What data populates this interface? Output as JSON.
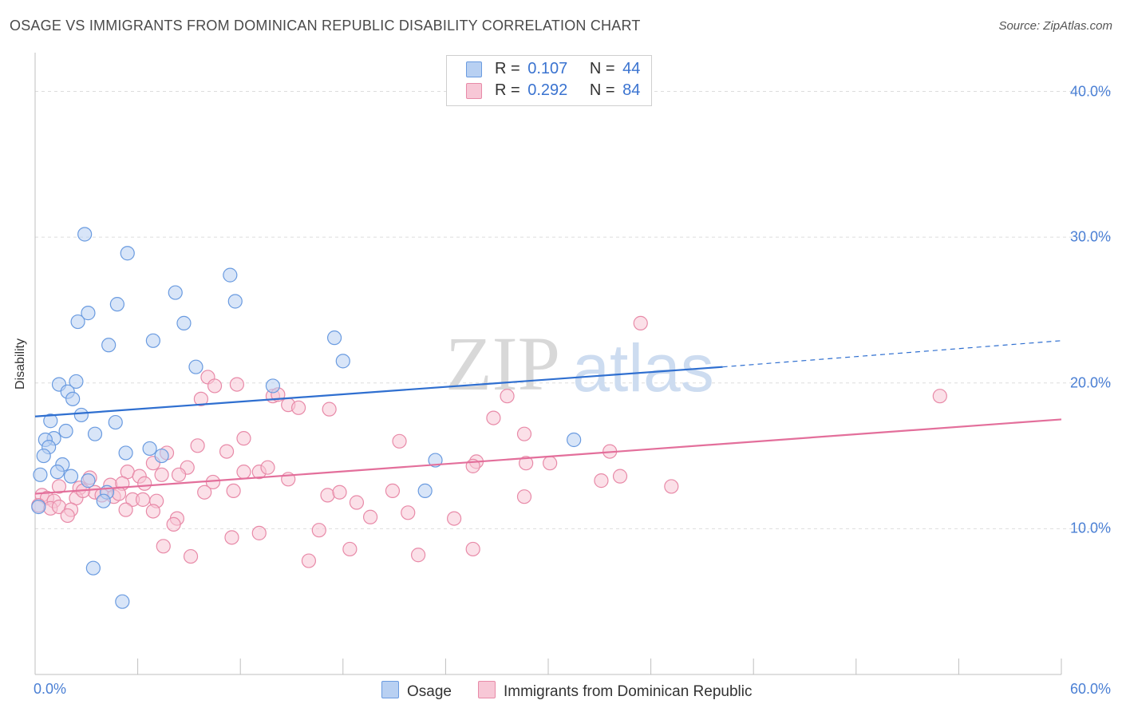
{
  "title": "OSAGE VS IMMIGRANTS FROM DOMINICAN REPUBLIC DISABILITY CORRELATION CHART",
  "source": "Source: ZipAtlas.com",
  "watermark": {
    "part1": "ZIP",
    "part2": "atlas"
  },
  "legend": {
    "rows": [
      {
        "r_label": "R =",
        "r_value": "0.107",
        "n_label": "N =",
        "n_value": "44"
      },
      {
        "r_label": "R =",
        "r_value": "0.292",
        "n_label": "N =",
        "n_value": "84"
      }
    ]
  },
  "bottom_legend": {
    "series1": "Osage",
    "series2": "Immigrants from Dominican Republic"
  },
  "colors": {
    "osage_fill": "#b8d0f2",
    "osage_stroke": "#6a9be0",
    "osage_line": "#2f6fd0",
    "dr_fill": "#f7c7d6",
    "dr_stroke": "#e88aa8",
    "dr_line": "#e36f9b",
    "tick_text": "#4a7fd4",
    "grid": "#dddddd"
  },
  "chart_data": {
    "type": "scatter",
    "title": "OSAGE VS IMMIGRANTS FROM DOMINICAN REPUBLIC DISABILITY CORRELATION CHART",
    "xlabel": "",
    "ylabel": "Disability",
    "xlim": [
      0,
      60
    ],
    "ylim": [
      0,
      42
    ],
    "x_tick_labels": [
      "0.0%",
      "60.0%"
    ],
    "y_ticks": [
      10,
      20,
      30,
      40
    ],
    "y_tick_labels": [
      "10.0%",
      "20.0%",
      "30.0%",
      "40.0%"
    ],
    "series": [
      {
        "name": "Osage",
        "R": 0.107,
        "N": 44,
        "trend": {
          "x0": 0,
          "y0": 17.7,
          "x1": 40.2,
          "y1": 21.1,
          "dashed_to_x": 60,
          "dashed_to_y": 22.9
        },
        "points": [
          [
            2.9,
            30.2
          ],
          [
            5.4,
            28.9
          ],
          [
            11.4,
            27.4
          ],
          [
            8.2,
            26.2
          ],
          [
            11.7,
            25.6
          ],
          [
            4.8,
            25.4
          ],
          [
            3.1,
            24.8
          ],
          [
            2.5,
            24.2
          ],
          [
            8.7,
            24.1
          ],
          [
            6.9,
            22.9
          ],
          [
            17.5,
            23.1
          ],
          [
            4.3,
            22.6
          ],
          [
            9.4,
            21.1
          ],
          [
            18.0,
            21.5
          ],
          [
            2.4,
            20.1
          ],
          [
            1.4,
            19.9
          ],
          [
            13.9,
            19.8
          ],
          [
            1.9,
            19.4
          ],
          [
            2.2,
            18.9
          ],
          [
            2.7,
            17.8
          ],
          [
            0.9,
            17.4
          ],
          [
            4.7,
            17.3
          ],
          [
            1.8,
            16.7
          ],
          [
            3.5,
            16.5
          ],
          [
            1.1,
            16.2
          ],
          [
            0.6,
            16.1
          ],
          [
            0.8,
            15.6
          ],
          [
            5.3,
            15.2
          ],
          [
            6.7,
            15.5
          ],
          [
            7.4,
            15.0
          ],
          [
            0.5,
            15.0
          ],
          [
            23.4,
            14.7
          ],
          [
            31.5,
            16.1
          ],
          [
            1.6,
            14.4
          ],
          [
            1.3,
            13.9
          ],
          [
            0.3,
            13.7
          ],
          [
            2.1,
            13.6
          ],
          [
            3.1,
            13.3
          ],
          [
            4.2,
            12.5
          ],
          [
            22.8,
            12.6
          ],
          [
            4.0,
            11.9
          ],
          [
            0.2,
            11.5
          ],
          [
            3.4,
            7.3
          ],
          [
            5.1,
            5.0
          ]
        ]
      },
      {
        "name": "Immigrants from Dominican Republic",
        "R": 0.292,
        "N": 84,
        "trend": {
          "x0": 0,
          "y0": 12.4,
          "x1": 60,
          "y1": 17.5
        },
        "points": [
          [
            35.4,
            24.1
          ],
          [
            52.9,
            19.1
          ],
          [
            10.1,
            20.4
          ],
          [
            10.5,
            19.8
          ],
          [
            11.8,
            19.9
          ],
          [
            9.7,
            18.9
          ],
          [
            13.9,
            19.1
          ],
          [
            14.8,
            18.5
          ],
          [
            15.4,
            18.3
          ],
          [
            17.2,
            18.2
          ],
          [
            14.2,
            19.2
          ],
          [
            26.8,
            17.6
          ],
          [
            27.6,
            19.1
          ],
          [
            28.6,
            16.5
          ],
          [
            12.2,
            16.2
          ],
          [
            9.5,
            15.7
          ],
          [
            11.2,
            15.3
          ],
          [
            7.7,
            15.2
          ],
          [
            21.3,
            16.0
          ],
          [
            25.8,
            14.6
          ],
          [
            25.6,
            14.3
          ],
          [
            28.7,
            14.5
          ],
          [
            30.1,
            14.5
          ],
          [
            33.6,
            15.3
          ],
          [
            5.4,
            13.9
          ],
          [
            6.1,
            13.6
          ],
          [
            6.9,
            14.5
          ],
          [
            8.9,
            14.2
          ],
          [
            12.2,
            13.9
          ],
          [
            13.1,
            13.9
          ],
          [
            13.6,
            14.2
          ],
          [
            14.8,
            13.4
          ],
          [
            33.1,
            13.3
          ],
          [
            34.2,
            13.6
          ],
          [
            7.4,
            13.7
          ],
          [
            8.4,
            13.7
          ],
          [
            10.4,
            13.2
          ],
          [
            3.2,
            13.5
          ],
          [
            4.4,
            13.0
          ],
          [
            5.1,
            13.1
          ],
          [
            6.4,
            13.1
          ],
          [
            2.6,
            12.8
          ],
          [
            1.4,
            12.9
          ],
          [
            3.5,
            12.5
          ],
          [
            3.9,
            12.3
          ],
          [
            4.6,
            12.2
          ],
          [
            5.7,
            12.0
          ],
          [
            6.3,
            12.0
          ],
          [
            9.9,
            12.5
          ],
          [
            11.6,
            12.6
          ],
          [
            17.1,
            12.3
          ],
          [
            17.8,
            12.5
          ],
          [
            20.9,
            12.6
          ],
          [
            28.6,
            12.2
          ],
          [
            37.2,
            12.9
          ],
          [
            0.4,
            12.3
          ],
          [
            0.7,
            12.1
          ],
          [
            1.1,
            11.9
          ],
          [
            2.4,
            12.1
          ],
          [
            7.1,
            11.9
          ],
          [
            18.8,
            11.8
          ],
          [
            0.2,
            11.6
          ],
          [
            0.9,
            11.4
          ],
          [
            1.4,
            11.5
          ],
          [
            2.1,
            11.3
          ],
          [
            5.3,
            11.3
          ],
          [
            6.9,
            11.2
          ],
          [
            19.6,
            10.8
          ],
          [
            21.8,
            11.1
          ],
          [
            24.5,
            10.7
          ],
          [
            1.9,
            10.9
          ],
          [
            8.3,
            10.7
          ],
          [
            8.1,
            10.3
          ],
          [
            16.6,
            9.9
          ],
          [
            13.1,
            9.7
          ],
          [
            11.5,
            9.4
          ],
          [
            7.5,
            8.8
          ],
          [
            18.4,
            8.6
          ],
          [
            25.6,
            8.6
          ],
          [
            9.1,
            8.1
          ],
          [
            16.0,
            7.8
          ],
          [
            22.4,
            8.2
          ],
          [
            2.8,
            12.6
          ],
          [
            4.9,
            12.4
          ]
        ]
      }
    ]
  }
}
